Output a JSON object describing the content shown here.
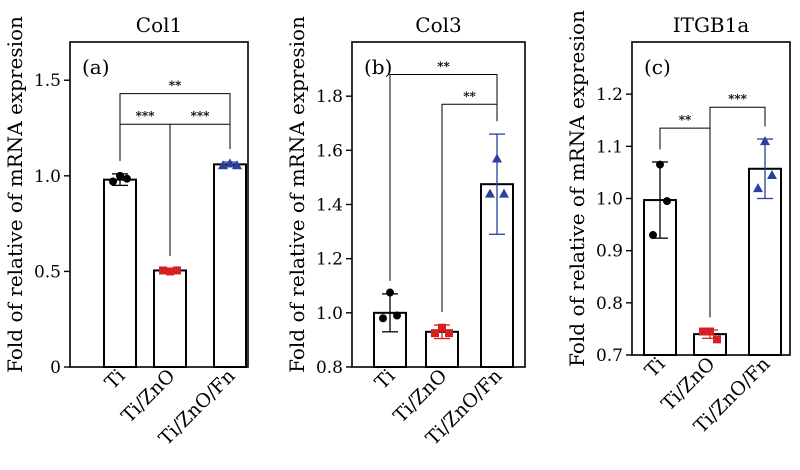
{
  "colors": {
    "axis": "#000000",
    "ti": "#000000",
    "ti_zno": "#d42020",
    "ti_zno_fn": "#2a3f9e",
    "bar_fill": "#ffffff"
  },
  "chart_data": [
    {
      "type": "bar",
      "title": "Col1",
      "panel_label": "(a)",
      "ylabel": "Fold of relative of mRNA expresion",
      "categories": [
        "Ti",
        "Ti/ZnO",
        "Ti/ZnO/Fn"
      ],
      "values": [
        0.98,
        0.505,
        1.06
      ],
      "error": [
        0.03,
        0.008,
        0.012
      ],
      "points": [
        [
          1.0,
          0.97,
          0.985
        ],
        [
          0.5,
          0.505,
          0.505
        ],
        [
          1.065,
          1.055,
          1.055
        ]
      ],
      "ylim": [
        0,
        1.7
      ],
      "yticks": [
        0,
        0.5,
        1.0,
        1.5
      ],
      "ytick_labels": [
        "0",
        "0.5",
        "1.0",
        "1.5"
      ],
      "significance": [
        {
          "from": 0,
          "to": 2,
          "label": "**",
          "y": 1.43
        },
        {
          "from": 0,
          "to": 1,
          "label": "***",
          "y": 1.27
        },
        {
          "from": 1,
          "to": 2,
          "label": "***",
          "y": 1.27
        }
      ]
    },
    {
      "type": "bar",
      "title": "Col3",
      "panel_label": "(b)",
      "ylabel": "Fold of relative of mRNA expresion",
      "categories": [
        "Ti",
        "Ti/ZnO",
        "Ti/ZnO/Fn"
      ],
      "values": [
        1.0,
        0.93,
        1.475
      ],
      "error": [
        0.07,
        0.025,
        0.185
      ],
      "points": [
        [
          1.075,
          0.98,
          0.99
        ],
        [
          0.945,
          0.925,
          0.925
        ],
        [
          1.57,
          1.44,
          1.44
        ]
      ],
      "ylim": [
        0.8,
        2.0
      ],
      "yticks": [
        0.8,
        1.0,
        1.2,
        1.4,
        1.6,
        1.8
      ],
      "ytick_labels": [
        "0.8",
        "1.0",
        "1.2",
        "1.4",
        "1.6",
        "1.8"
      ],
      "significance": [
        {
          "from": 0,
          "to": 2,
          "label": "**",
          "y": 1.88
        },
        {
          "from": 1,
          "to": 2,
          "label": "**",
          "y": 1.77
        }
      ]
    },
    {
      "type": "bar",
      "title": "ITGB1a",
      "panel_label": "(c)",
      "ylabel": "Fold of relative of mRNA expresion",
      "categories": [
        "Ti",
        "Ti/ZnO",
        "Ti/ZnO/Fn"
      ],
      "values": [
        0.997,
        0.74,
        1.057
      ],
      "error": [
        0.073,
        0.008,
        0.057
      ],
      "points": [
        [
          1.065,
          0.93,
          0.995
        ],
        [
          0.745,
          0.745,
          0.73
        ],
        [
          1.11,
          1.02,
          1.045
        ]
      ],
      "ylim": [
        0.7,
        1.3
      ],
      "yticks": [
        0.7,
        0.8,
        0.9,
        1.0,
        1.1,
        1.2
      ],
      "ytick_labels": [
        "0.7",
        "0.8",
        "0.9",
        "1.0",
        "1.1",
        "1.2"
      ],
      "significance": [
        {
          "from": 0,
          "to": 1,
          "label": "**",
          "y": 1.135
        },
        {
          "from": 1,
          "to": 2,
          "label": "***",
          "y": 1.175
        }
      ]
    }
  ]
}
